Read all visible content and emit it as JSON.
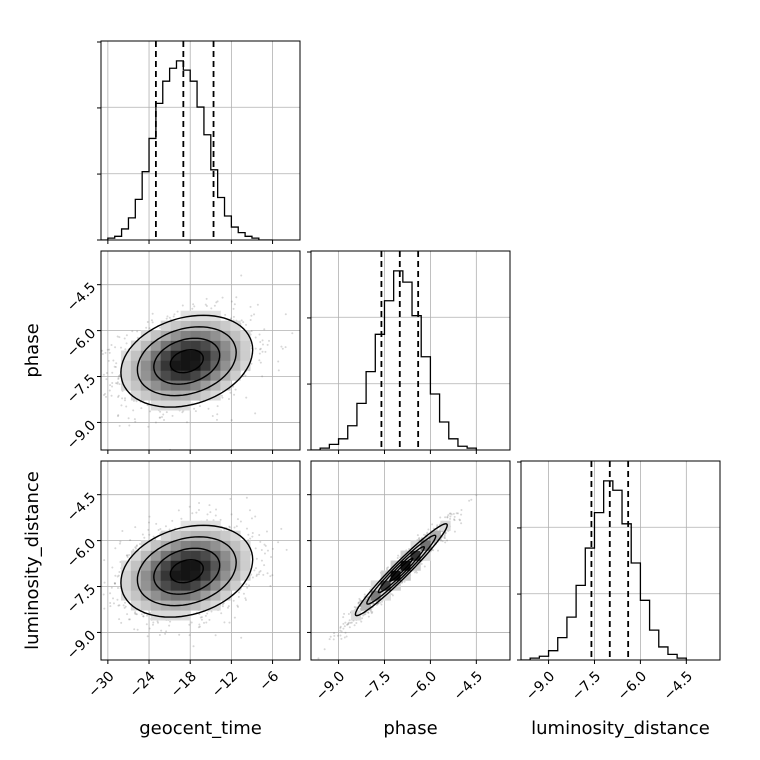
{
  "chart_data": {
    "type": "corner",
    "parameters": [
      "geocent_time",
      "phase",
      "luminosity_distance"
    ],
    "axis_labels": [
      "geocent_time",
      "phase",
      "luminosity_distance"
    ],
    "ranges": {
      "geocent_time": [
        -31,
        -2
      ],
      "phase": [
        -9.9,
        -3.4
      ],
      "luminosity_distance": [
        -9.9,
        -3.4
      ]
    },
    "ticks": {
      "geocent_time": [
        -30,
        -24,
        -18,
        -12,
        -6
      ],
      "phase": [
        -9.0,
        -7.5,
        -6.0,
        -4.5
      ],
      "luminosity_distance": [
        -9.0,
        -7.5,
        -6.0,
        -4.5
      ]
    },
    "tick_labels": {
      "geocent_time": [
        "−30",
        "−24",
        "−18",
        "−12",
        "−6"
      ],
      "phase": [
        "−9.0",
        "−7.5",
        "−6.0",
        "−4.5"
      ],
      "luminosity_distance": [
        "−9.0",
        "−7.5",
        "−6.0",
        "−4.5"
      ]
    },
    "quantiles": {
      "geocent_time": [
        -23.0,
        -19.0,
        -14.6
      ],
      "phase": [
        -7.6,
        -7.0,
        -6.4
      ],
      "luminosity_distance": [
        -7.6,
        -7.0,
        -6.4
      ]
    },
    "histograms": {
      "geocent_time": {
        "edges": [
          -31.0,
          -30.0,
          -29.0,
          -28.0,
          -27.0,
          -26.0,
          -25.0,
          -24.0,
          -23.0,
          -22.0,
          -21.0,
          -20.0,
          -19.0,
          -18.0,
          -17.0,
          -16.0,
          -15.0,
          -14.0,
          -13.0,
          -12.0,
          -11.0,
          -10.0,
          -9.0,
          -8.0,
          -7.0,
          -6.0
        ],
        "counts": [
          0.0,
          0.01,
          0.02,
          0.06,
          0.12,
          0.22,
          0.37,
          0.55,
          0.74,
          0.86,
          0.93,
          0.97,
          0.92,
          0.86,
          0.72,
          0.57,
          0.38,
          0.23,
          0.13,
          0.07,
          0.04,
          0.02,
          0.01,
          0.0,
          0.0
        ]
      },
      "phase": {
        "edges": [
          -9.9,
          -9.6,
          -9.3,
          -9.0,
          -8.7,
          -8.4,
          -8.1,
          -7.8,
          -7.5,
          -7.2,
          -6.9,
          -6.6,
          -6.3,
          -6.0,
          -5.7,
          -5.4,
          -5.1,
          -4.8,
          -4.5
        ],
        "counts": [
          0.0,
          0.01,
          0.03,
          0.06,
          0.13,
          0.25,
          0.42,
          0.62,
          0.8,
          0.96,
          0.9,
          0.72,
          0.5,
          0.3,
          0.15,
          0.06,
          0.02,
          0.01
        ]
      },
      "luminosity_distance": {
        "edges": [
          -9.9,
          -9.6,
          -9.3,
          -9.0,
          -8.7,
          -8.4,
          -8.1,
          -7.8,
          -7.5,
          -7.2,
          -6.9,
          -6.6,
          -6.3,
          -6.0,
          -5.7,
          -5.4,
          -5.1,
          -4.8,
          -4.5
        ],
        "counts": [
          0.0,
          0.01,
          0.02,
          0.05,
          0.12,
          0.23,
          0.4,
          0.6,
          0.79,
          0.96,
          0.91,
          0.73,
          0.52,
          0.32,
          0.16,
          0.07,
          0.03,
          0.01
        ]
      }
    },
    "pairs": [
      {
        "x": "geocent_time",
        "y": "phase",
        "center": [
          -18.5,
          -7.0
        ],
        "sigma": [
          4.8,
          0.75
        ],
        "rho": 0.25
      },
      {
        "x": "geocent_time",
        "y": "luminosity_distance",
        "center": [
          -18.5,
          -7.0
        ],
        "sigma": [
          4.8,
          0.75
        ],
        "rho": 0.25
      },
      {
        "x": "phase",
        "y": "luminosity_distance",
        "center": [
          -6.95,
          -6.95
        ],
        "sigma": [
          0.75,
          0.75
        ],
        "rho": 0.97
      }
    ],
    "contour_levels_sigma": [
      0.5,
      1.0,
      1.5,
      2.0
    ],
    "grid": true,
    "colors": {
      "line": "#000000",
      "grid": "#b0b0b0",
      "points": "#6e6e6e"
    }
  }
}
